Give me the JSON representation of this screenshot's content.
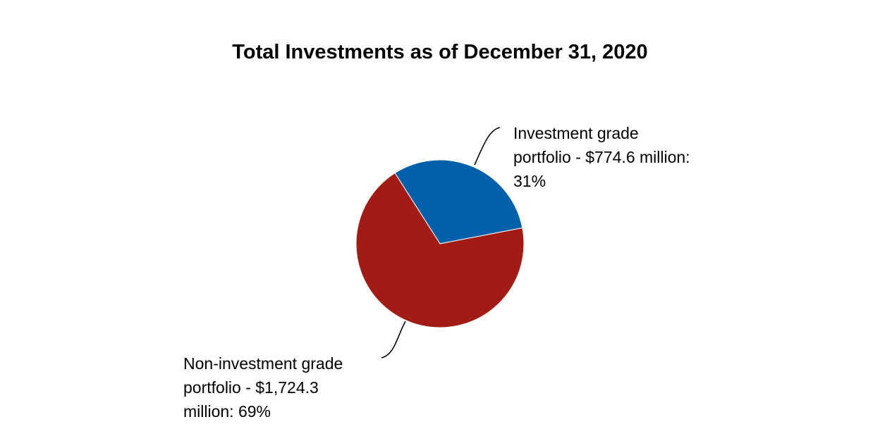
{
  "chart_data": {
    "type": "pie",
    "title": "Total Investments as of December 31, 2020",
    "unit": "$ million",
    "slices": [
      {
        "name": "Investment grade portfolio",
        "value": 774.6,
        "percent": 31,
        "color": "#0060A9",
        "label_lines": [
          "Investment grade",
          "portfolio - $774.6 million:",
          "31%"
        ]
      },
      {
        "name": "Non-investment grade portfolio",
        "value": 1724.3,
        "percent": 69,
        "color": "#A21C15",
        "label_lines": [
          "Non-investment grade",
          "portfolio - $1,724.3",
          "million: 69%"
        ]
      }
    ]
  }
}
